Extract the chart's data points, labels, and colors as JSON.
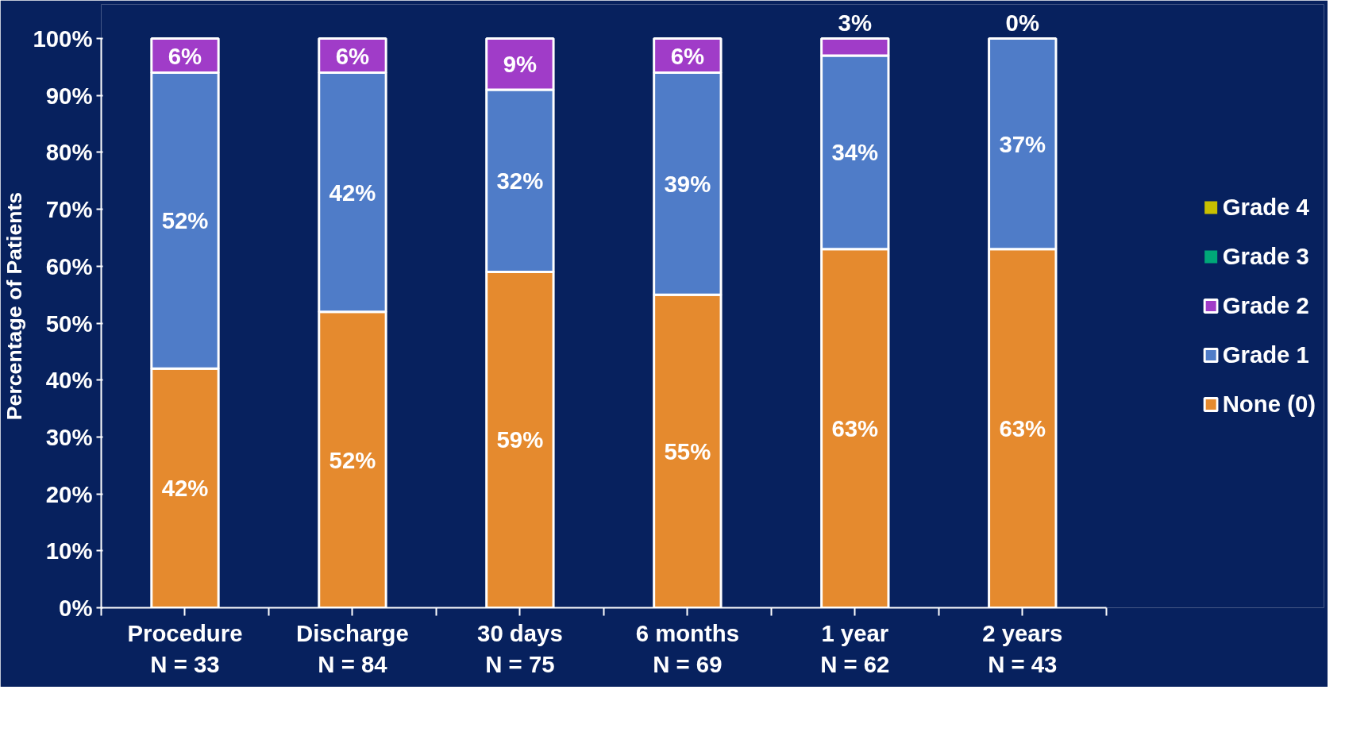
{
  "chart_data": {
    "type": "bar",
    "stacked": true,
    "ylabel": "Percentage of Patients",
    "categories": [
      "Procedure\nN = 33",
      "Discharge\nN = 84",
      "30 days\nN = 75",
      "6 months\nN = 69",
      "1 year\nN = 62",
      "2 years\nN = 43"
    ],
    "series": [
      {
        "name": "None (0)",
        "color": "#e58a2e",
        "values": [
          42,
          52,
          59,
          55,
          63,
          63
        ],
        "value_labels": [
          "42%",
          "52%",
          "59%",
          "55%",
          "63%",
          "63%"
        ]
      },
      {
        "name": "Grade 1",
        "color": "#4f7cc8",
        "values": [
          52,
          42,
          32,
          39,
          34,
          37
        ],
        "value_labels": [
          "52%",
          "42%",
          "32%",
          "39%",
          "34%",
          "37%"
        ]
      },
      {
        "name": "Grade 2",
        "color": "#a03cc8",
        "values": [
          6,
          6,
          9,
          6,
          3,
          0
        ],
        "value_labels": [
          "6%",
          "6%",
          "9%",
          "6%",
          "3%",
          "0%"
        ]
      },
      {
        "name": "Grade 3",
        "color": "#00a878",
        "values": [
          0,
          0,
          0,
          0,
          0,
          0
        ]
      },
      {
        "name": "Grade 4",
        "color": "#c8c000",
        "values": [
          0,
          0,
          0,
          0,
          0,
          0
        ]
      }
    ],
    "ylim": [
      0,
      100
    ],
    "yticks": [
      {
        "value": 0,
        "label": "0%"
      },
      {
        "value": 10,
        "label": "10%"
      },
      {
        "value": 20,
        "label": "20%"
      },
      {
        "value": 30,
        "label": "30%"
      },
      {
        "value": 40,
        "label": "40%"
      },
      {
        "value": 50,
        "label": "50%"
      },
      {
        "value": 60,
        "label": "60%"
      },
      {
        "value": 70,
        "label": "70%"
      },
      {
        "value": 80,
        "label": "80%"
      },
      {
        "value": 90,
        "label": "90%"
      },
      {
        "value": 100,
        "label": "100%"
      }
    ],
    "grid": false,
    "legend": "right"
  }
}
